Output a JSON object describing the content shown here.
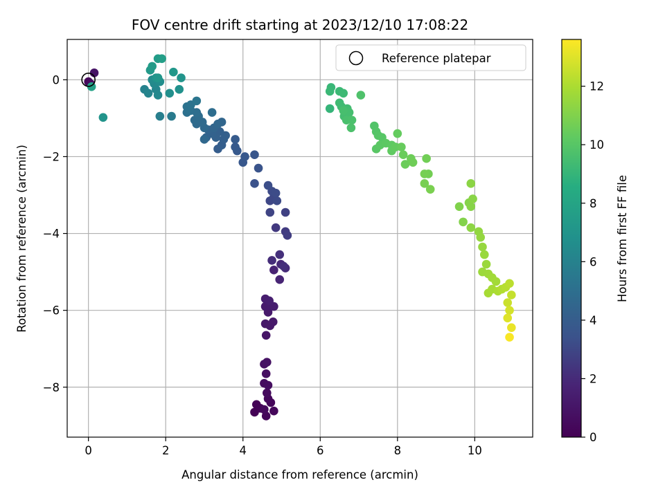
{
  "chart_data": {
    "type": "scatter",
    "title": "FOV centre drift starting at 2023/12/10 17:08:22",
    "xlabel": "Angular distance from reference (arcmin)",
    "ylabel": "Rotation from reference (arcmin)",
    "colorbar_label": "Hours from first FF file",
    "colormap": "viridis",
    "xlim": [
      -0.55,
      11.5
    ],
    "ylim": [
      -9.3,
      1.05
    ],
    "clim": [
      0,
      13.6
    ],
    "xticks": [
      0,
      2,
      4,
      6,
      8,
      10
    ],
    "xtick_labels": [
      "0",
      "2",
      "4",
      "6",
      "8",
      "10"
    ],
    "yticks": [
      0,
      -2,
      -4,
      -6,
      -8
    ],
    "ytick_labels": [
      "0",
      "−2",
      "−4",
      "−6",
      "−8"
    ],
    "cticks": [
      0,
      2,
      4,
      6,
      8,
      10,
      12
    ],
    "ctick_labels": [
      "0",
      "2",
      "4",
      "6",
      "8",
      "10",
      "12"
    ],
    "grid": true,
    "legend": {
      "placement": "top-right",
      "entries": [
        "Reference platepar"
      ]
    },
    "reference_point": {
      "x": 0,
      "y": 0
    },
    "points": [
      {
        "x": 4.3,
        "y": -8.65,
        "c": 0.05
      },
      {
        "x": 4.35,
        "y": -8.45,
        "c": 0.1
      },
      {
        "x": 4.45,
        "y": -8.55,
        "c": 0.15
      },
      {
        "x": 4.6,
        "y": -8.75,
        "c": 0.2
      },
      {
        "x": 4.72,
        "y": -8.4,
        "c": 0.25
      },
      {
        "x": 4.8,
        "y": -8.62,
        "c": 0.3
      },
      {
        "x": 4.65,
        "y": -8.3,
        "c": 0.35
      },
      {
        "x": 4.55,
        "y": -8.58,
        "c": 0.4
      },
      {
        "x": 4.62,
        "y": -8.15,
        "c": 0.5
      },
      {
        "x": 4.55,
        "y": -7.9,
        "c": 0.6
      },
      {
        "x": 4.65,
        "y": -7.95,
        "c": 0.65
      },
      {
        "x": 4.6,
        "y": -7.65,
        "c": 0.7
      },
      {
        "x": 4.55,
        "y": -7.4,
        "c": 0.8
      },
      {
        "x": 4.62,
        "y": -7.35,
        "c": 0.85
      },
      {
        "x": 4.6,
        "y": -6.65,
        "c": 1.0
      },
      {
        "x": 4.58,
        "y": -6.35,
        "c": 1.1
      },
      {
        "x": 4.7,
        "y": -6.4,
        "c": 1.15
      },
      {
        "x": 4.78,
        "y": -6.3,
        "c": 1.2
      },
      {
        "x": 4.65,
        "y": -6.05,
        "c": 1.25
      },
      {
        "x": 4.58,
        "y": -5.9,
        "c": 1.3
      },
      {
        "x": 4.7,
        "y": -5.85,
        "c": 1.35
      },
      {
        "x": 4.8,
        "y": -5.9,
        "c": 1.4
      },
      {
        "x": 4.58,
        "y": -5.7,
        "c": 1.45
      },
      {
        "x": 4.68,
        "y": -5.75,
        "c": 1.5
      },
      {
        "x": 4.8,
        "y": -4.95,
        "c": 1.7
      },
      {
        "x": 4.95,
        "y": -5.2,
        "c": 1.8
      },
      {
        "x": 4.98,
        "y": -4.8,
        "c": 1.9
      },
      {
        "x": 5.1,
        "y": -4.9,
        "c": 2.0
      },
      {
        "x": 4.75,
        "y": -4.7,
        "c": 2.1
      },
      {
        "x": 5.05,
        "y": -4.85,
        "c": 2.15
      },
      {
        "x": 4.95,
        "y": -4.55,
        "c": 2.2
      },
      {
        "x": 4.85,
        "y": -3.85,
        "c": 2.5
      },
      {
        "x": 5.1,
        "y": -3.95,
        "c": 2.6
      },
      {
        "x": 5.15,
        "y": -4.05,
        "c": 2.65
      },
      {
        "x": 5.1,
        "y": -3.45,
        "c": 2.8
      },
      {
        "x": 4.7,
        "y": -3.45,
        "c": 2.9
      },
      {
        "x": 4.7,
        "y": -3.15,
        "c": 3.0
      },
      {
        "x": 4.8,
        "y": -3.05,
        "c": 3.05
      },
      {
        "x": 4.88,
        "y": -3.15,
        "c": 3.1
      },
      {
        "x": 4.75,
        "y": -2.9,
        "c": 3.15
      },
      {
        "x": 4.85,
        "y": -2.95,
        "c": 3.2
      },
      {
        "x": 4.65,
        "y": -2.75,
        "c": 3.25
      },
      {
        "x": 4.3,
        "y": -2.7,
        "c": 3.4
      },
      {
        "x": 4.4,
        "y": -2.3,
        "c": 3.5
      },
      {
        "x": 4.3,
        "y": -1.95,
        "c": 3.6
      },
      {
        "x": 4.0,
        "y": -2.15,
        "c": 3.7
      },
      {
        "x": 4.05,
        "y": -2.0,
        "c": 3.75
      },
      {
        "x": 3.85,
        "y": -1.85,
        "c": 3.8
      },
      {
        "x": 3.8,
        "y": -1.75,
        "c": 3.85
      },
      {
        "x": 3.8,
        "y": -1.55,
        "c": 3.9
      },
      {
        "x": 3.35,
        "y": -1.8,
        "c": 4.0
      },
      {
        "x": 3.45,
        "y": -1.7,
        "c": 4.05
      },
      {
        "x": 3.5,
        "y": -1.55,
        "c": 4.1
      },
      {
        "x": 3.55,
        "y": -1.45,
        "c": 4.15
      },
      {
        "x": 3.4,
        "y": -1.35,
        "c": 4.2
      },
      {
        "x": 3.3,
        "y": -1.5,
        "c": 4.25
      },
      {
        "x": 3.2,
        "y": -1.4,
        "c": 4.3
      },
      {
        "x": 3.05,
        "y": -1.5,
        "c": 4.35
      },
      {
        "x": 3.1,
        "y": -1.3,
        "c": 4.4
      },
      {
        "x": 3.25,
        "y": -1.25,
        "c": 4.45
      },
      {
        "x": 3.45,
        "y": -1.1,
        "c": 4.5
      },
      {
        "x": 3.35,
        "y": -1.15,
        "c": 4.55
      },
      {
        "x": 3.0,
        "y": -1.55,
        "c": 4.6
      },
      {
        "x": 3.0,
        "y": -1.25,
        "c": 4.65
      },
      {
        "x": 2.95,
        "y": -1.1,
        "c": 4.7
      },
      {
        "x": 2.8,
        "y": -1.15,
        "c": 4.75
      },
      {
        "x": 2.75,
        "y": -1.05,
        "c": 4.8
      },
      {
        "x": 2.85,
        "y": -0.95,
        "c": 4.85
      },
      {
        "x": 3.2,
        "y": -0.85,
        "c": 4.9
      },
      {
        "x": 2.8,
        "y": -0.85,
        "c": 4.95
      },
      {
        "x": 2.65,
        "y": -0.8,
        "c": 5.0
      },
      {
        "x": 2.55,
        "y": -0.85,
        "c": 5.05
      },
      {
        "x": 2.6,
        "y": -0.75,
        "c": 5.1
      },
      {
        "x": 2.55,
        "y": -0.7,
        "c": 5.15
      },
      {
        "x": 2.65,
        "y": -0.65,
        "c": 5.2
      },
      {
        "x": 2.8,
        "y": -0.55,
        "c": 5.3
      },
      {
        "x": 2.15,
        "y": -0.95,
        "c": 5.6
      },
      {
        "x": 1.85,
        "y": -0.95,
        "c": 5.8
      },
      {
        "x": 1.45,
        "y": -0.25,
        "c": 6.0
      },
      {
        "x": 1.55,
        "y": -0.35,
        "c": 6.1
      },
      {
        "x": 1.75,
        "y": -0.25,
        "c": 6.2
      },
      {
        "x": 1.8,
        "y": -0.4,
        "c": 6.3
      },
      {
        "x": 1.7,
        "y": -0.1,
        "c": 6.4
      },
      {
        "x": 1.65,
        "y": 0.0,
        "c": 6.5
      },
      {
        "x": 1.85,
        "y": -0.05,
        "c": 6.6
      },
      {
        "x": 2.1,
        "y": -0.35,
        "c": 6.7
      },
      {
        "x": 2.35,
        "y": -0.25,
        "c": 6.8
      },
      {
        "x": 1.75,
        "y": 0.05,
        "c": 6.9
      },
      {
        "x": 2.4,
        "y": 0.05,
        "c": 7.0
      },
      {
        "x": 1.8,
        "y": 0.05,
        "c": 7.1
      },
      {
        "x": 2.2,
        "y": 0.2,
        "c": 7.2
      },
      {
        "x": 1.6,
        "y": 0.25,
        "c": 7.3
      },
      {
        "x": 1.65,
        "y": 0.35,
        "c": 7.4
      },
      {
        "x": 1.8,
        "y": 0.55,
        "c": 7.5
      },
      {
        "x": 1.9,
        "y": 0.55,
        "c": 7.6
      },
      {
        "x": 0.0,
        "y": -0.05,
        "c": 0.3
      },
      {
        "x": 0.05,
        "y": -0.1,
        "c": 0.5
      },
      {
        "x": 0.15,
        "y": 0.18,
        "c": 0.9
      },
      {
        "x": 0.08,
        "y": -0.18,
        "c": 7.8
      },
      {
        "x": 0.38,
        "y": -0.98,
        "c": 7.0
      },
      {
        "x": 6.25,
        "y": -0.75,
        "c": 9.0
      },
      {
        "x": 6.28,
        "y": -0.2,
        "c": 9.1
      },
      {
        "x": 6.25,
        "y": -0.3,
        "c": 9.15
      },
      {
        "x": 6.5,
        "y": -0.3,
        "c": 9.2
      },
      {
        "x": 6.6,
        "y": -0.35,
        "c": 9.25
      },
      {
        "x": 6.5,
        "y": -0.6,
        "c": 9.3
      },
      {
        "x": 6.55,
        "y": -0.7,
        "c": 9.35
      },
      {
        "x": 6.7,
        "y": -0.75,
        "c": 9.4
      },
      {
        "x": 6.62,
        "y": -0.95,
        "c": 9.45
      },
      {
        "x": 6.75,
        "y": -0.85,
        "c": 9.5
      },
      {
        "x": 6.6,
        "y": -0.8,
        "c": 9.55
      },
      {
        "x": 6.68,
        "y": -1.05,
        "c": 9.6
      },
      {
        "x": 6.82,
        "y": -1.05,
        "c": 9.65
      },
      {
        "x": 6.8,
        "y": -1.25,
        "c": 9.7
      },
      {
        "x": 7.05,
        "y": -0.4,
        "c": 9.75
      },
      {
        "x": 7.4,
        "y": -1.2,
        "c": 9.85
      },
      {
        "x": 7.45,
        "y": -1.35,
        "c": 9.9
      },
      {
        "x": 7.5,
        "y": -1.45,
        "c": 9.95
      },
      {
        "x": 7.6,
        "y": -1.5,
        "c": 10.0
      },
      {
        "x": 7.45,
        "y": -1.8,
        "c": 10.05
      },
      {
        "x": 7.55,
        "y": -1.7,
        "c": 10.1
      },
      {
        "x": 7.7,
        "y": -1.65,
        "c": 10.15
      },
      {
        "x": 7.85,
        "y": -1.7,
        "c": 10.2
      },
      {
        "x": 7.85,
        "y": -1.85,
        "c": 10.25
      },
      {
        "x": 7.95,
        "y": -1.75,
        "c": 10.3
      },
      {
        "x": 8.0,
        "y": -1.4,
        "c": 10.35
      },
      {
        "x": 8.1,
        "y": -1.75,
        "c": 10.4
      },
      {
        "x": 8.15,
        "y": -1.95,
        "c": 10.45
      },
      {
        "x": 8.2,
        "y": -2.2,
        "c": 10.5
      },
      {
        "x": 8.35,
        "y": -2.05,
        "c": 10.55
      },
      {
        "x": 8.4,
        "y": -2.15,
        "c": 10.6
      },
      {
        "x": 8.75,
        "y": -2.05,
        "c": 10.65
      },
      {
        "x": 8.8,
        "y": -2.45,
        "c": 10.7
      },
      {
        "x": 8.7,
        "y": -2.45,
        "c": 10.75
      },
      {
        "x": 8.7,
        "y": -2.7,
        "c": 10.8
      },
      {
        "x": 8.85,
        "y": -2.85,
        "c": 10.85
      },
      {
        "x": 9.6,
        "y": -3.3,
        "c": 11.0
      },
      {
        "x": 9.7,
        "y": -3.7,
        "c": 11.05
      },
      {
        "x": 9.85,
        "y": -3.2,
        "c": 11.1
      },
      {
        "x": 9.9,
        "y": -3.3,
        "c": 11.15
      },
      {
        "x": 9.95,
        "y": -3.1,
        "c": 11.2
      },
      {
        "x": 9.9,
        "y": -2.7,
        "c": 11.25
      },
      {
        "x": 9.9,
        "y": -3.85,
        "c": 11.3
      },
      {
        "x": 10.1,
        "y": -3.95,
        "c": 11.4
      },
      {
        "x": 10.15,
        "y": -4.1,
        "c": 11.45
      },
      {
        "x": 10.2,
        "y": -4.35,
        "c": 11.5
      },
      {
        "x": 10.25,
        "y": -4.55,
        "c": 11.55
      },
      {
        "x": 10.3,
        "y": -4.8,
        "c": 11.6
      },
      {
        "x": 10.2,
        "y": -5.0,
        "c": 11.65
      },
      {
        "x": 10.35,
        "y": -5.05,
        "c": 11.7
      },
      {
        "x": 10.45,
        "y": -5.15,
        "c": 11.75
      },
      {
        "x": 10.55,
        "y": -5.25,
        "c": 11.8
      },
      {
        "x": 10.45,
        "y": -5.45,
        "c": 11.85
      },
      {
        "x": 10.35,
        "y": -5.55,
        "c": 11.9
      },
      {
        "x": 10.6,
        "y": -5.5,
        "c": 12.0
      },
      {
        "x": 10.7,
        "y": -5.45,
        "c": 12.1
      },
      {
        "x": 10.8,
        "y": -5.4,
        "c": 12.2
      },
      {
        "x": 10.9,
        "y": -5.3,
        "c": 12.3
      },
      {
        "x": 10.95,
        "y": -5.6,
        "c": 12.5
      },
      {
        "x": 10.85,
        "y": -5.8,
        "c": 12.6
      },
      {
        "x": 10.9,
        "y": -6.0,
        "c": 12.8
      },
      {
        "x": 10.85,
        "y": -6.2,
        "c": 13.0
      },
      {
        "x": 10.95,
        "y": -6.45,
        "c": 13.2
      },
      {
        "x": 10.9,
        "y": -6.7,
        "c": 13.5
      }
    ]
  }
}
